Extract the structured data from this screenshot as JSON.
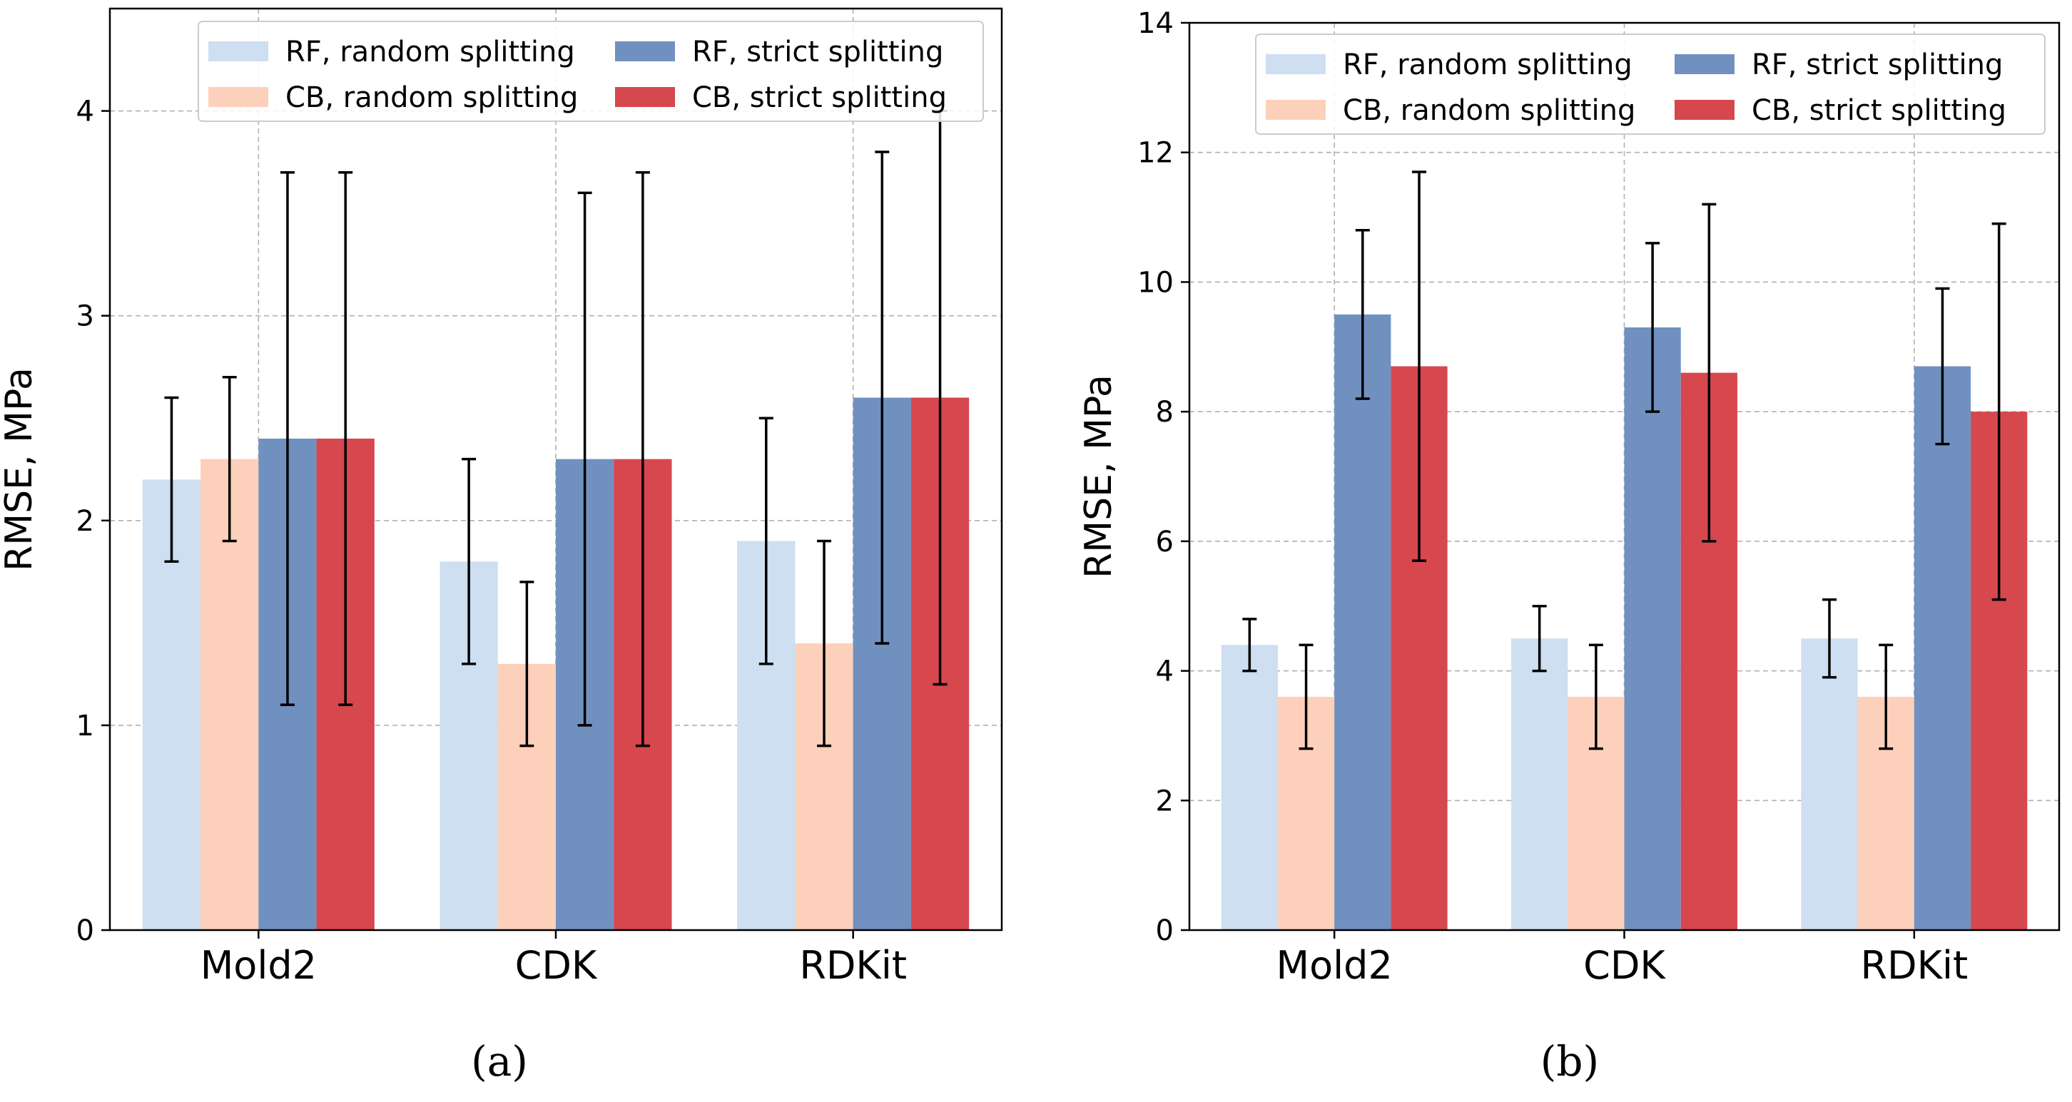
{
  "chart_data": [
    {
      "type": "bar",
      "panel_label": "(a)",
      "categories": [
        "Mold2",
        "CDK",
        "RDKit"
      ],
      "ylabel": "RMSE, MPa",
      "xlabel": "",
      "ylim": [
        0,
        4.5
      ],
      "yticks": [
        0,
        1,
        2,
        3,
        4
      ],
      "grid": true,
      "legend_position": "top-right",
      "series": [
        {
          "name": "RF, random splitting",
          "color": "#cddff0",
          "values": [
            2.2,
            1.8,
            1.9
          ],
          "error_low": [
            1.8,
            1.3,
            1.3
          ],
          "error_high": [
            2.6,
            2.3,
            2.5
          ]
        },
        {
          "name": "CB, random splitting",
          "color": "#fdd0bb",
          "values": [
            2.3,
            1.3,
            1.4
          ],
          "error_low": [
            1.9,
            0.9,
            0.9
          ],
          "error_high": [
            2.7,
            1.7,
            1.9
          ]
        },
        {
          "name": "RF, strict splitting",
          "color": "#7091c0",
          "values": [
            2.4,
            2.3,
            2.6
          ],
          "error_low": [
            1.1,
            1.0,
            1.4
          ],
          "error_high": [
            3.7,
            3.6,
            3.8
          ]
        },
        {
          "name": "CB, strict splitting",
          "color": "#d6474e",
          "values": [
            2.4,
            2.3,
            2.6
          ],
          "error_low": [
            1.1,
            0.9,
            1.2
          ],
          "error_high": [
            3.7,
            3.7,
            4.0
          ]
        }
      ]
    },
    {
      "type": "bar",
      "panel_label": "(b)",
      "categories": [
        "Mold2",
        "CDK",
        "RDKit"
      ],
      "ylabel": "RMSE, MPa",
      "xlabel": "",
      "ylim": [
        0,
        14
      ],
      "yticks": [
        0,
        2,
        4,
        6,
        8,
        10,
        12,
        14
      ],
      "grid": true,
      "legend_position": "top-right",
      "series": [
        {
          "name": "RF, random splitting",
          "color": "#cddff0",
          "values": [
            4.4,
            4.5,
            4.5
          ],
          "error_low": [
            4.0,
            4.0,
            3.9
          ],
          "error_high": [
            4.8,
            5.0,
            5.1
          ]
        },
        {
          "name": "CB, random splitting",
          "color": "#fdd0bb",
          "values": [
            3.6,
            3.6,
            3.6
          ],
          "error_low": [
            2.8,
            2.8,
            2.8
          ],
          "error_high": [
            4.4,
            4.4,
            4.4
          ]
        },
        {
          "name": "RF, strict splitting",
          "color": "#7091c0",
          "values": [
            9.5,
            9.3,
            8.7
          ],
          "error_low": [
            8.2,
            8.0,
            7.5
          ],
          "error_high": [
            10.8,
            10.6,
            9.9
          ]
        },
        {
          "name": "CB, strict splitting",
          "color": "#d6474e",
          "values": [
            8.7,
            8.6,
            8.0
          ],
          "error_low": [
            5.7,
            6.0,
            5.1
          ],
          "error_high": [
            11.7,
            11.2,
            10.9
          ]
        }
      ]
    }
  ]
}
